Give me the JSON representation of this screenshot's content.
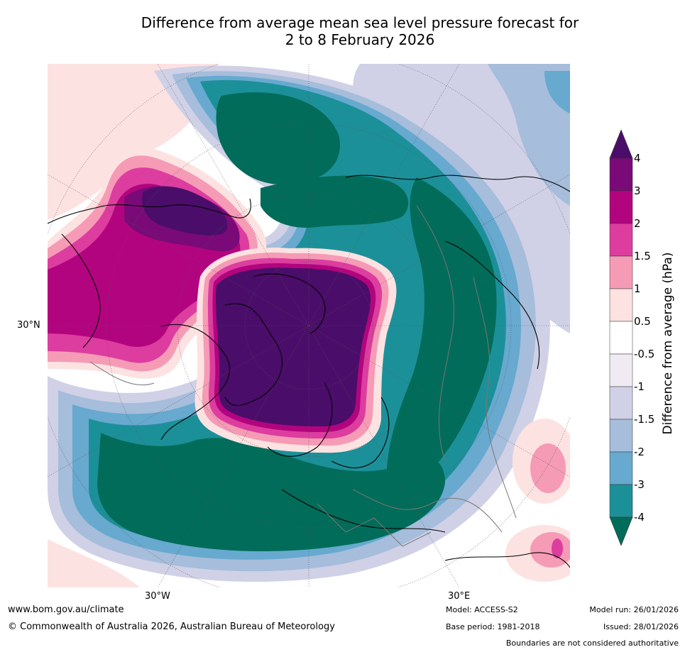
{
  "title": {
    "line1": "Difference from average mean sea level pressure forecast for",
    "line2": "2 to 8 February 2026"
  },
  "map": {
    "lat_labels": [
      "30°N"
    ],
    "lon_labels": [
      "30°W",
      "30°E"
    ]
  },
  "legend": {
    "title": "Difference from average (hPa)",
    "ticks": [
      "4",
      "3",
      "2",
      "1.5",
      "1",
      "0.5",
      "-0.5",
      "-1",
      "-1.5",
      "-2",
      "-3",
      "-4"
    ],
    "colors": {
      "extend_high": "#4b0d6a",
      "3_to_4": "#7a0a78",
      "2_to_3": "#b3047f",
      "1.5_to_2": "#dc3d9f",
      "1_to_1.5": "#f59bb6",
      "0.5_to_1": "#fde2e2",
      "-0.5_to_0.5": "#ffffff",
      "-1_to_-0.5": "#f0eaf3",
      "-1.5_to_-1": "#d0d1e6",
      "-2_to_-1.5": "#a6bddb",
      "-3_to_-2": "#67a9cf",
      "-4_to_-3": "#1c9099",
      "extend_low": "#016c59"
    }
  },
  "footer": {
    "website": "www.bom.gov.au/climate",
    "copyright": "© Commonwealth of Australia 2026, Australian Bureau of Meteorology",
    "model": "Model: ACCESS-S2",
    "base_period": "Base period: 1981-2018",
    "model_run": "Model run: 26/01/2026",
    "issued": "Issued: 28/01/2026",
    "disclaimer": "Boundaries are not considered authoritative"
  }
}
